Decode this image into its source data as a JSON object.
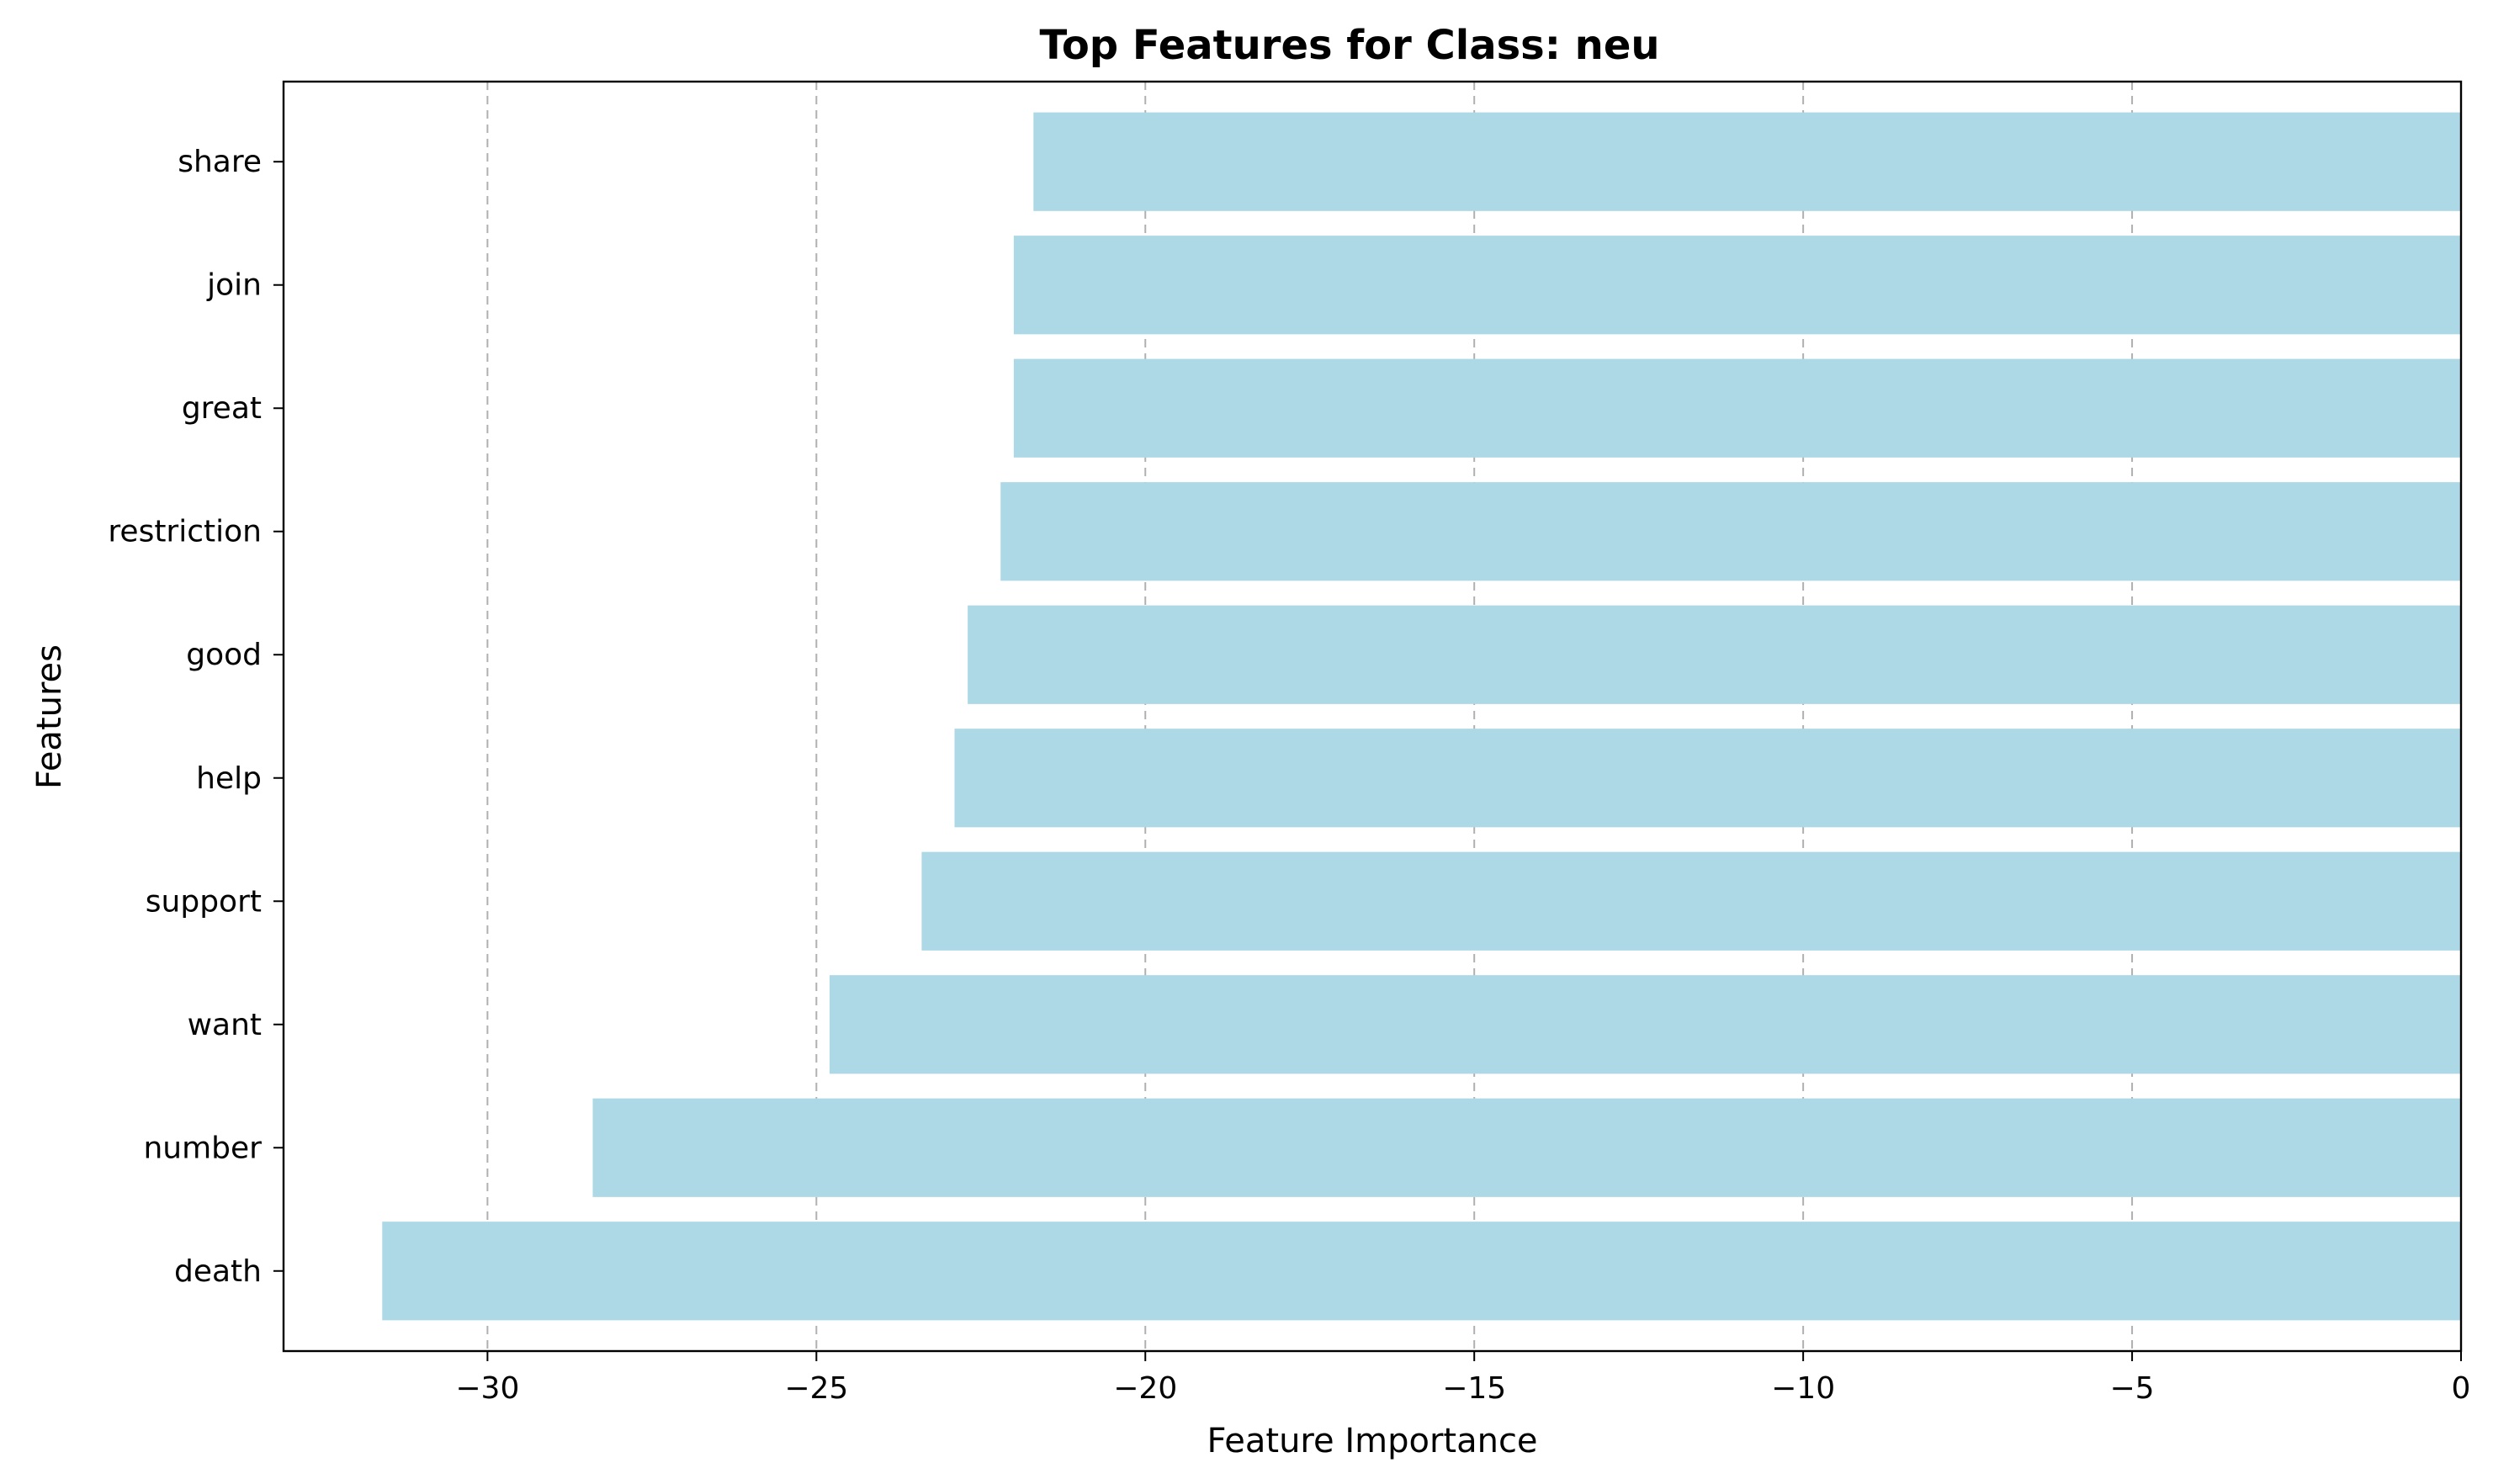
{
  "chart_data": {
    "type": "bar",
    "orientation": "horizontal",
    "title": "Top Features for Class: neu",
    "xlabel": "Feature Importance",
    "ylabel": "Features",
    "categories": [
      "death",
      "number",
      "want",
      "support",
      "help",
      "good",
      "restriction",
      "great",
      "join",
      "share"
    ],
    "values": [
      -31.6,
      -28.4,
      -24.8,
      -23.4,
      -22.9,
      -22.7,
      -22.2,
      -22.0,
      -22.0,
      -21.7
    ],
    "xlim": [
      -33.1,
      0
    ],
    "xticks": [
      -30,
      -25,
      -20,
      -15,
      -10,
      -5,
      0
    ],
    "xtick_labels": [
      "−30",
      "−25",
      "−20",
      "−15",
      "−10",
      "−5",
      "0"
    ],
    "grid": "x-dashed",
    "bar_color": "#add8e6"
  }
}
